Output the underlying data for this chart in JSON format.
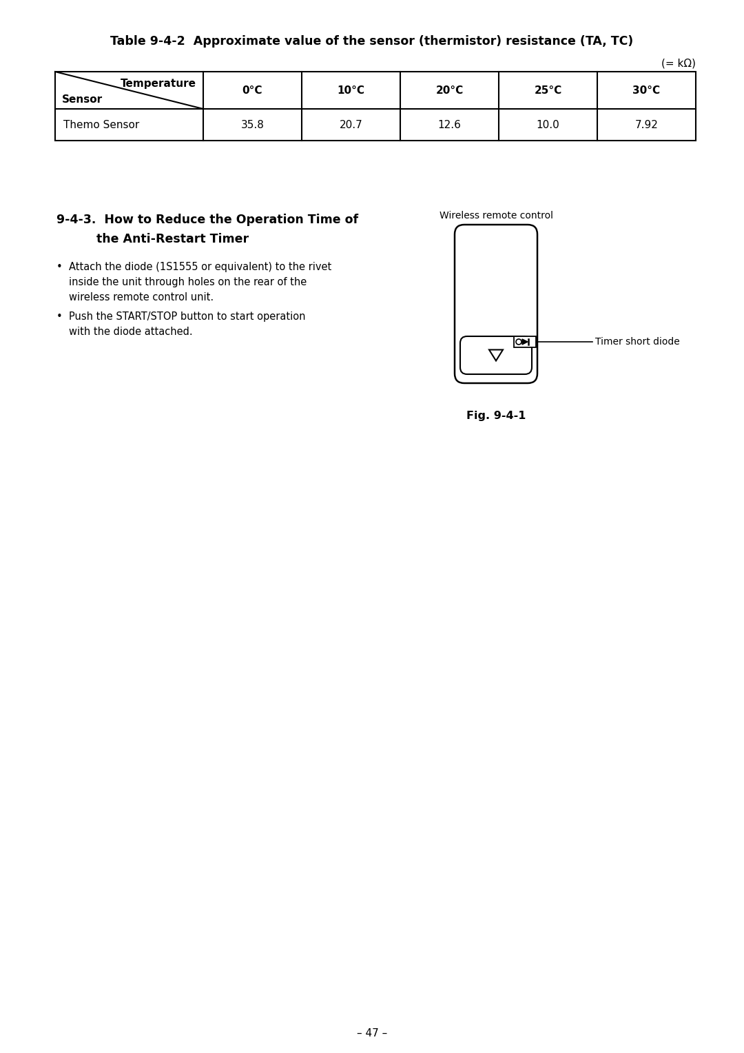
{
  "title": "Table 9-4-2  Approximate value of the sensor (thermistor) resistance (TA, TC)",
  "unit_label": "(= kΩ)",
  "table_header_left": "Sensor",
  "table_header_right": "Temperature",
  "col_headers": [
    "0°C",
    "10°C",
    "20°C",
    "25°C",
    "30°C"
  ],
  "row_label": "Themo Sensor",
  "row_values": [
    "35.8",
    "20.7",
    "12.6",
    "10.0",
    "7.92"
  ],
  "section_title_line1": "9-4-3.  How to Reduce the Operation Time of",
  "section_title_line2": "the Anti-Restart Timer",
  "bullet1_line1": "•  Attach the diode (1S1555 or equivalent) to the rivet",
  "bullet1_line2": "inside the unit through holes on the rear of the",
  "bullet1_line3": "wireless remote control unit.",
  "bullet2_line1": "•  Push the START/STOP button to start operation",
  "bullet2_line2": "with the diode attached.",
  "diagram_label": "Wireless remote control",
  "arrow_label": "Timer short diode",
  "fig_label": "Fig. 9-4-1",
  "page_number": "– 47 –",
  "bg_color": "#ffffff",
  "text_color": "#000000",
  "line_color": "#000000"
}
